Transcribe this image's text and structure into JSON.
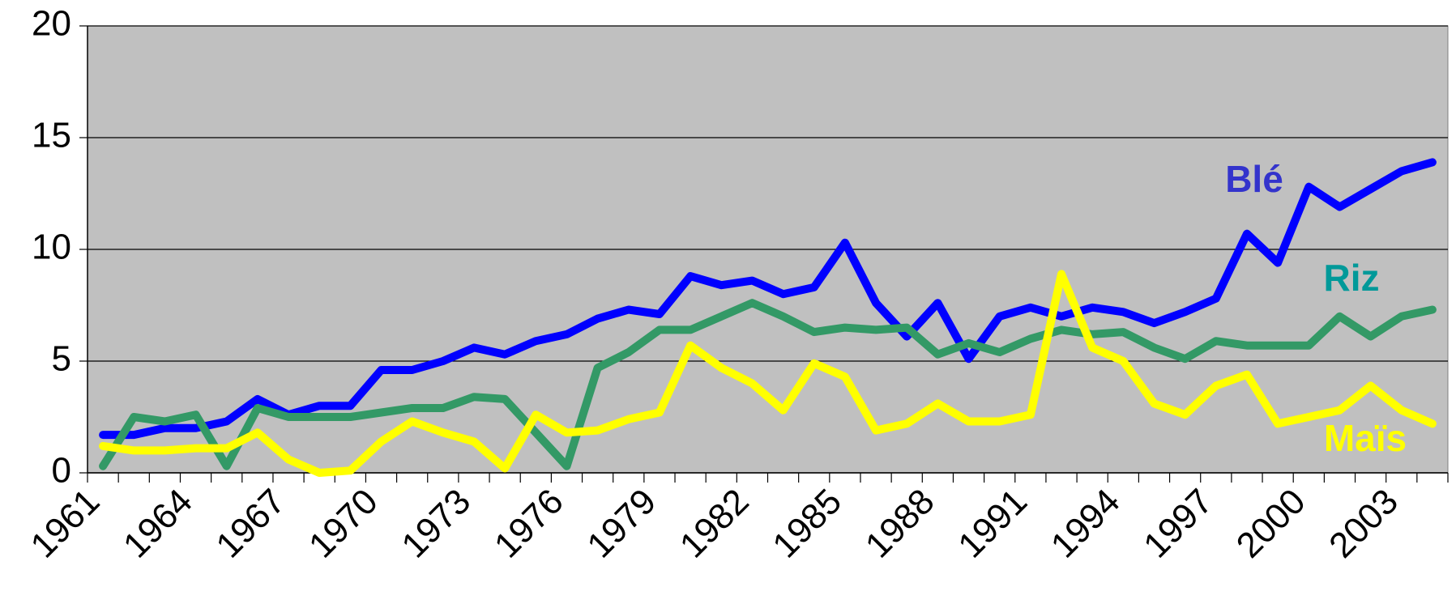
{
  "chart_data": {
    "type": "line",
    "categories": [
      "1961",
      null,
      null,
      "1964",
      null,
      null,
      "1967",
      null,
      null,
      "1970",
      null,
      null,
      "1973",
      null,
      null,
      "1976",
      null,
      null,
      "1979",
      null,
      null,
      "1982",
      null,
      null,
      "1985",
      null,
      null,
      "1988",
      null,
      null,
      "1991",
      null,
      null,
      "1994",
      null,
      null,
      "1997",
      null,
      null,
      "2000",
      null,
      null,
      "2003",
      null
    ],
    "series": [
      {
        "name": "Blé",
        "color": "#0000ff",
        "label_color": "#3333cc",
        "values": [
          1.7,
          1.7,
          2.0,
          2.0,
          2.3,
          3.3,
          2.6,
          3.0,
          3.0,
          4.6,
          4.6,
          5.0,
          5.6,
          5.3,
          5.9,
          6.2,
          6.9,
          7.3,
          7.1,
          8.8,
          8.4,
          8.6,
          8.0,
          8.3,
          10.3,
          7.6,
          6.1,
          7.6,
          5.1,
          7.0,
          7.4,
          7.0,
          7.4,
          7.2,
          6.7,
          7.2,
          7.8,
          10.7,
          9.4,
          12.8,
          11.9,
          12.7,
          13.5,
          13.9
        ]
      },
      {
        "name": "Riz",
        "color": "#339966",
        "label_color": "#009999",
        "values": [
          0.3,
          2.5,
          2.3,
          2.6,
          0.3,
          2.9,
          2.5,
          2.5,
          2.5,
          2.7,
          2.9,
          2.9,
          3.4,
          3.3,
          1.8,
          0.3,
          4.7,
          5.4,
          6.4,
          6.4,
          7.0,
          7.6,
          7.0,
          6.3,
          6.5,
          6.4,
          6.5,
          5.3,
          5.8,
          5.4,
          6.0,
          6.4,
          6.2,
          6.3,
          5.6,
          5.1,
          5.9,
          5.7,
          5.7,
          5.7,
          7.0,
          6.1,
          7.0,
          7.3
        ]
      },
      {
        "name": "Maïs",
        "color": "#ffff00",
        "label_color": "#ffff00",
        "values": [
          1.2,
          1.0,
          1.0,
          1.1,
          1.1,
          1.8,
          0.6,
          0.0,
          0.1,
          1.4,
          2.3,
          1.8,
          1.4,
          0.2,
          2.6,
          1.8,
          1.9,
          2.4,
          2.7,
          5.7,
          4.7,
          4.0,
          2.8,
          4.9,
          4.3,
          1.9,
          2.2,
          3.1,
          2.3,
          2.3,
          2.6,
          8.9,
          5.6,
          5.0,
          3.1,
          2.6,
          3.9,
          4.4,
          2.2,
          2.5,
          2.8,
          3.9,
          2.8,
          2.2
        ]
      }
    ],
    "ylim": [
      0,
      20
    ],
    "yticks": [
      0,
      5,
      10,
      15,
      20
    ],
    "grid": true,
    "background": "#c0c0c0"
  }
}
